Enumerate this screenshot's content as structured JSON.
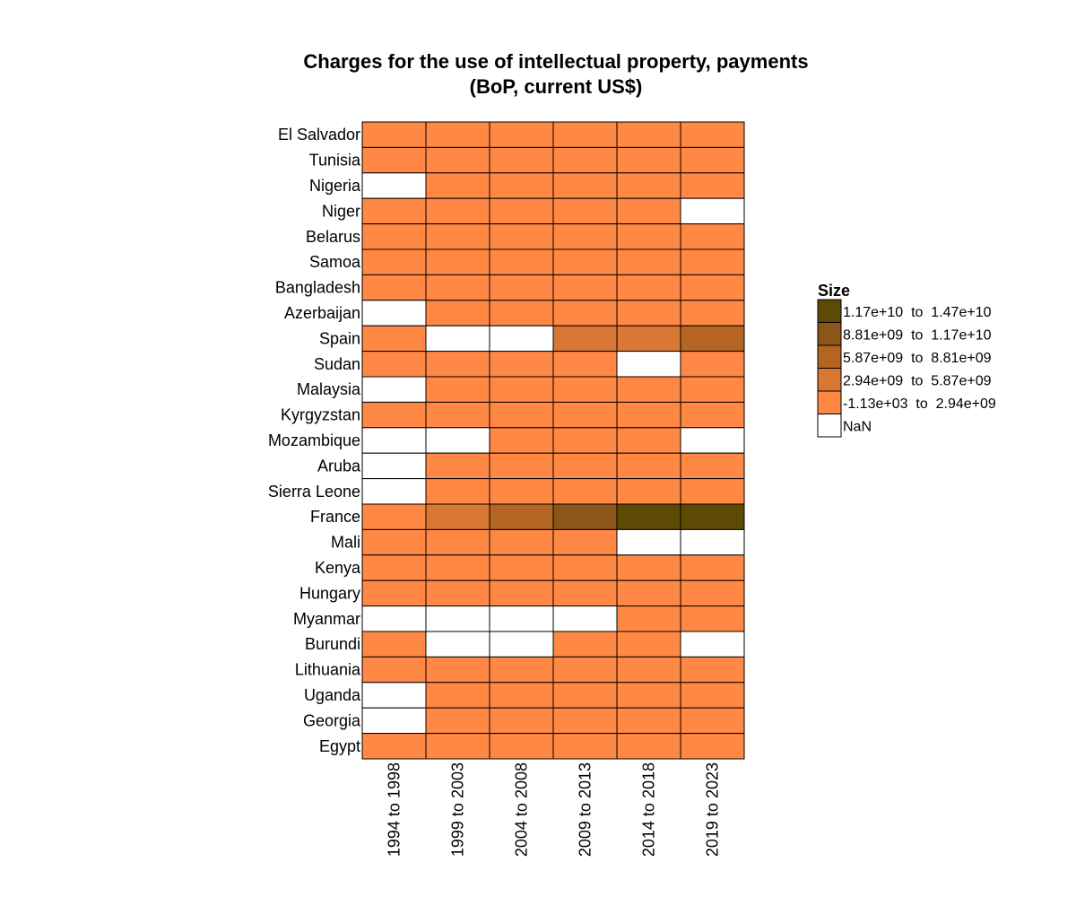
{
  "chart_data": {
    "type": "heatmap",
    "title_line1": "Charges for the use of intellectual property, payments",
    "title_line2": "(BoP, current US$)",
    "columns": [
      "1994 to 1998",
      "1999 to 2003",
      "2004 to 2008",
      "2009 to 2013",
      "2014 to 2018",
      "2019 to 2023"
    ],
    "rows": [
      "El Salvador",
      "Tunisia",
      "Nigeria",
      "Niger",
      "Belarus",
      "Samoa",
      "Bangladesh",
      "Azerbaijan",
      "Spain",
      "Sudan",
      "Malaysia",
      "Kyrgyzstan",
      "Mozambique",
      "Aruba",
      "Sierra Leone",
      "France",
      "Mali",
      "Kenya",
      "Hungary",
      "Myanmar",
      "Burundi",
      "Lithuania",
      "Uganda",
      "Georgia",
      "Egypt"
    ],
    "cells": [
      [
        0,
        0,
        0,
        0,
        0,
        0
      ],
      [
        0,
        0,
        0,
        0,
        0,
        0
      ],
      [
        null,
        0,
        0,
        0,
        0,
        0
      ],
      [
        0,
        0,
        0,
        0,
        0,
        null
      ],
      [
        0,
        0,
        0,
        0,
        0,
        0
      ],
      [
        0,
        0,
        0,
        0,
        0,
        0
      ],
      [
        0,
        0,
        0,
        0,
        0,
        0
      ],
      [
        null,
        0,
        0,
        0,
        0,
        0
      ],
      [
        0,
        null,
        null,
        1,
        1,
        2
      ],
      [
        0,
        0,
        0,
        0,
        null,
        0
      ],
      [
        null,
        0,
        0,
        0,
        0,
        0
      ],
      [
        0,
        0,
        0,
        0,
        0,
        0
      ],
      [
        null,
        null,
        0,
        0,
        0,
        null
      ],
      [
        null,
        0,
        0,
        0,
        0,
        0
      ],
      [
        null,
        0,
        0,
        0,
        0,
        0
      ],
      [
        0,
        1,
        2,
        3,
        4,
        4
      ],
      [
        0,
        0,
        0,
        0,
        null,
        null
      ],
      [
        0,
        0,
        0,
        0,
        0,
        0
      ],
      [
        0,
        0,
        0,
        0,
        0,
        0
      ],
      [
        null,
        null,
        null,
        null,
        0,
        0
      ],
      [
        0,
        null,
        null,
        0,
        0,
        null
      ],
      [
        0,
        0,
        0,
        0,
        0,
        0
      ],
      [
        null,
        0,
        0,
        0,
        0,
        0
      ],
      [
        null,
        0,
        0,
        0,
        0,
        0
      ],
      [
        0,
        0,
        0,
        0,
        0,
        0
      ]
    ],
    "bins": [
      {
        "label": "-1.13e+03  to  2.94e+09",
        "color": "#ff8845"
      },
      {
        "label": "2.94e+09  to  5.87e+09",
        "color": "#d97834"
      },
      {
        "label": "5.87e+09  to  8.81e+09",
        "color": "#b46523"
      },
      {
        "label": "8.81e+09  to  1.17e+10",
        "color": "#8b5619"
      },
      {
        "label": "1.17e+10  to  1.47e+10",
        "color": "#5c4a05"
      }
    ],
    "nan_label": "NaN",
    "nan_color": "#ffffff",
    "legend_title": "Size",
    "legend_placement": "right"
  }
}
